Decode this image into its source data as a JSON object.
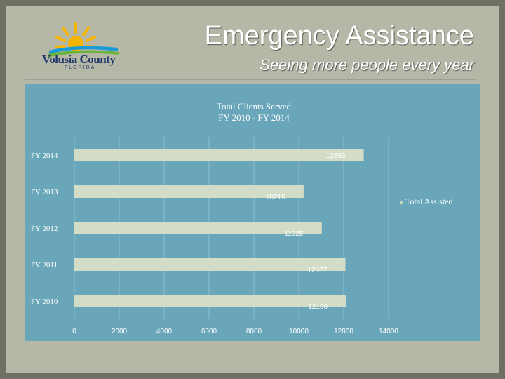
{
  "header": {
    "title": "Emergency Assistance",
    "subtitle": "Seeing more people every year"
  },
  "logo": {
    "name": "Volusia County",
    "state": "FLORIDA",
    "colors": {
      "sun": "#f4b400",
      "water": "#1a9bd7",
      "land": "#6cb33e",
      "text": "#233a6e"
    }
  },
  "chart_data": {
    "type": "bar",
    "orientation": "horizontal",
    "title": "Total Clients Served",
    "subtitle": "FY 2010 - FY 2014",
    "categories": [
      "FY 2014",
      "FY 2013",
      "FY 2012",
      "FY 2011",
      "FY 2010"
    ],
    "series": [
      {
        "name": "Total Assisted",
        "values": [
          12893,
          10215,
          11025,
          12077,
          12100
        ],
        "color": "#d3dcc6"
      }
    ],
    "data_labels": [
      "12893",
      "10215",
      "11025",
      "12077",
      "12100"
    ],
    "xlim": [
      0,
      14000
    ],
    "xticks": [
      "0",
      "2000",
      "4000",
      "6000",
      "8000",
      "10000",
      "12000",
      "14000"
    ],
    "gridlines": true,
    "legend_position": "right",
    "colors": {
      "plot_background": "#6aa6ba",
      "gridline": "#8ec0cf",
      "tick_text": "#ffffff"
    }
  }
}
